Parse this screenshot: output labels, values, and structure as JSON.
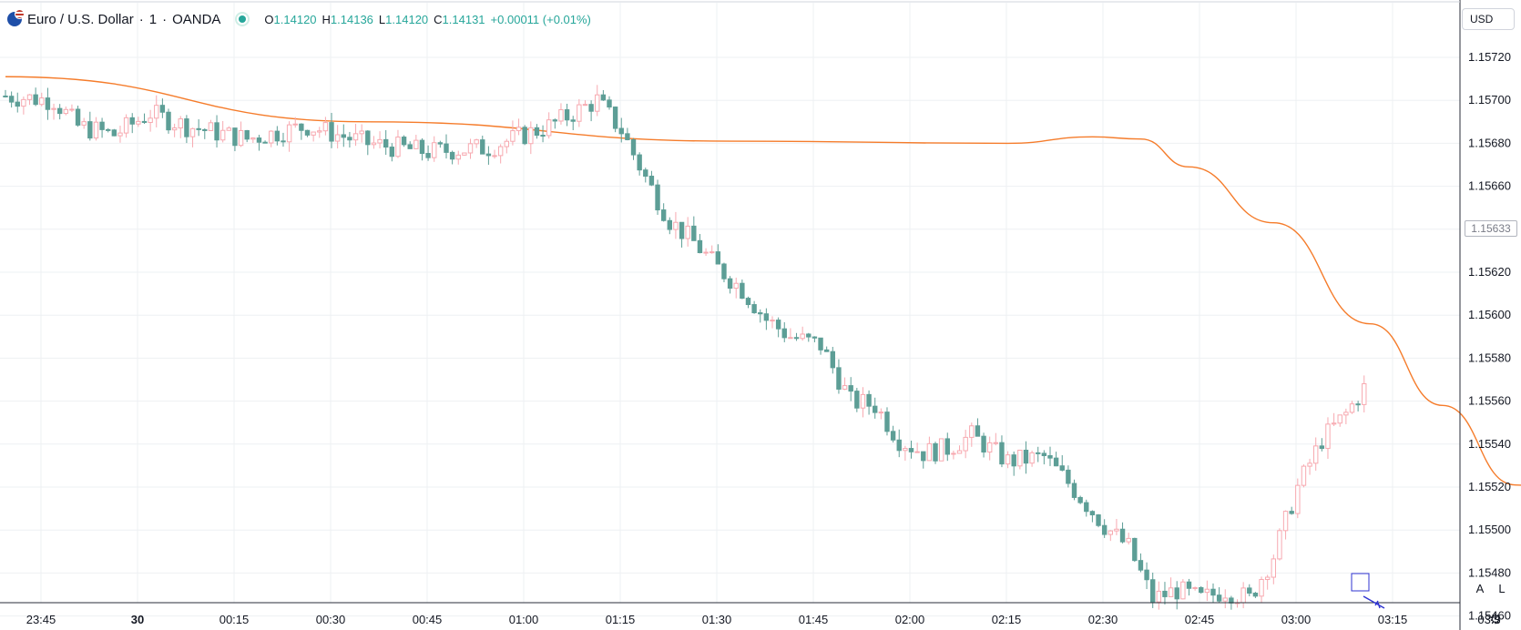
{
  "legend": {
    "symbol": "Euro / U.S. Dollar",
    "interval": "1",
    "exchange": "OANDA",
    "separator": "·",
    "ohlc": {
      "o_label": "O",
      "o": "1.14120",
      "h_label": "H",
      "h": "1.14136",
      "l_label": "L",
      "l": "1.14120",
      "c_label": "C",
      "c": "1.14131",
      "change": "+0.00011 (+0.01%)"
    }
  },
  "price_scale": {
    "currency": "USD",
    "current_price_label": "1.15633",
    "auto_label": "A",
    "log_label": "L"
  },
  "time_axis": {
    "settings_icon": "gear-icon"
  },
  "colors": {
    "up": "#f7a9b0",
    "down": "#5d9e96",
    "ma": "#f57c2b",
    "grid": "#eef0f3",
    "text_green": "#26a69a"
  },
  "chart_data": {
    "type": "candlestick",
    "symbol": "EURUSD",
    "interval_minutes": 1,
    "y_ticks": [
      "1.15460",
      "1.15480",
      "1.15500",
      "1.15520",
      "1.15540",
      "1.15560",
      "1.15580",
      "1.15600",
      "1.15620",
      "1.15640",
      "1.15660",
      "1.15680",
      "1.15700",
      "1.15720"
    ],
    "ylim": [
      1.1545,
      1.15735
    ],
    "x_ticks": [
      {
        "label": "23:45",
        "bold": false
      },
      {
        "label": "30",
        "bold": true
      },
      {
        "label": "00:15",
        "bold": false
      },
      {
        "label": "00:30",
        "bold": false
      },
      {
        "label": "00:45",
        "bold": false
      },
      {
        "label": "01:00",
        "bold": false
      },
      {
        "label": "01:15",
        "bold": false
      },
      {
        "label": "01:30",
        "bold": false
      },
      {
        "label": "01:45",
        "bold": false
      },
      {
        "label": "02:00",
        "bold": false
      },
      {
        "label": "02:15",
        "bold": false
      },
      {
        "label": "02:30",
        "bold": false
      },
      {
        "label": "02:45",
        "bold": false
      },
      {
        "label": "03:00",
        "bold": false
      },
      {
        "label": "03:15",
        "bold": false
      },
      {
        "label": "03:3",
        "bold": false
      }
    ],
    "close_keypoints": [
      [
        0,
        1.15702
      ],
      [
        8,
        1.157
      ],
      [
        12,
        1.15688
      ],
      [
        18,
        1.15684
      ],
      [
        24,
        1.15694
      ],
      [
        30,
        1.15688
      ],
      [
        40,
        1.15682
      ],
      [
        50,
        1.15688
      ],
      [
        60,
        1.1568
      ],
      [
        70,
        1.15676
      ],
      [
        80,
        1.15678
      ],
      [
        90,
        1.15688
      ],
      [
        98,
        1.157
      ],
      [
        102,
        1.15686
      ],
      [
        106,
        1.15664
      ],
      [
        110,
        1.15644
      ],
      [
        114,
        1.15634
      ],
      [
        118,
        1.15622
      ],
      [
        122,
        1.15612
      ],
      [
        126,
        1.15598
      ],
      [
        130,
        1.1559
      ],
      [
        135,
        1.15586
      ],
      [
        140,
        1.1556
      ],
      [
        144,
        1.15558
      ],
      [
        148,
        1.15542
      ],
      [
        152,
        1.15536
      ],
      [
        156,
        1.15538
      ],
      [
        160,
        1.15544
      ],
      [
        166,
        1.15532
      ],
      [
        172,
        1.15534
      ],
      [
        176,
        1.15522
      ],
      [
        182,
        1.15502
      ],
      [
        186,
        1.15492
      ],
      [
        190,
        1.15468
      ],
      [
        194,
        1.15472
      ],
      [
        198,
        1.15468
      ],
      [
        202,
        1.15472
      ],
      [
        206,
        1.15468
      ],
      [
        210,
        1.15488
      ],
      [
        214,
        1.1552
      ],
      [
        218,
        1.15542
      ],
      [
        222,
        1.15554
      ],
      [
        225,
        1.15566
      ]
    ],
    "moving_average": {
      "points": [
        [
          0,
          1.15711
        ],
        [
          60,
          1.1569
        ],
        [
          120,
          1.15681
        ],
        [
          166,
          1.1568
        ],
        [
          180,
          1.15683
        ],
        [
          188,
          1.15682
        ],
        [
          196,
          1.15669
        ],
        [
          210,
          1.15643
        ],
        [
          226,
          1.15596
        ],
        [
          238,
          1.15558
        ],
        [
          250,
          1.15521
        ],
        [
          262,
          1.15508
        ],
        [
          270,
          1.15508
        ]
      ]
    }
  }
}
